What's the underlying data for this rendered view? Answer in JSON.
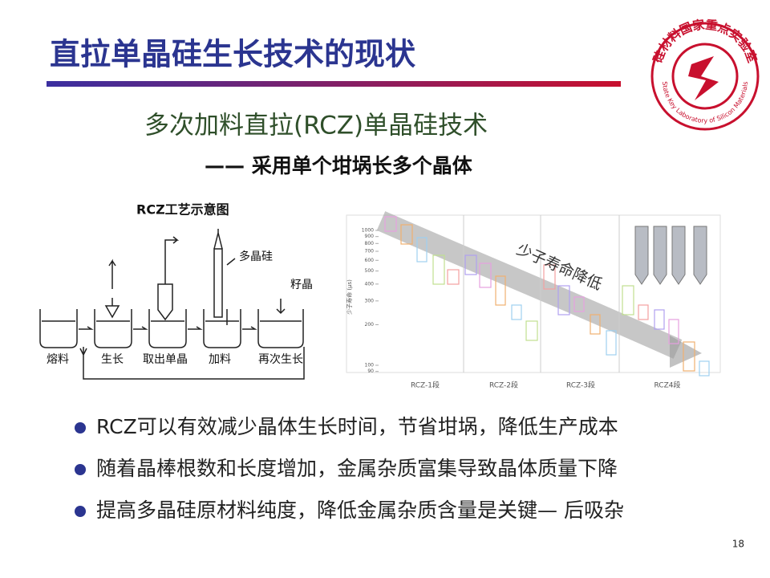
{
  "header": {
    "title": "直拉单晶硅生长技术的现状",
    "logo_text": "硅材料国家重点实验室",
    "logo_english": "State Key Laboratory of Silicon Materials"
  },
  "subtitle": {
    "line1": "多次加料直拉(RCZ)单晶硅技术",
    "line2": "—— 采用单个坩埚长多个晶体"
  },
  "diagram": {
    "title": "RCZ工艺示意图",
    "labels": {
      "polysilicon": "多晶硅",
      "seed": "籽晶"
    },
    "steps": [
      "熔料",
      "生长",
      "取出单晶",
      "加料",
      "再次生长"
    ]
  },
  "figure": {
    "y_label": "少子寿命 (μs)",
    "annotation": "少子寿命降低",
    "categories": [
      "RCZ-1段",
      "RCZ-2段",
      "RCZ-3段",
      "RCZ4段"
    ],
    "yticks": [
      1000,
      900,
      800,
      700,
      600,
      500,
      400,
      300,
      200,
      100,
      90
    ]
  },
  "bullets": [
    "RCZ可以有效减少晶体生长时间，节省坩埚，降低生产成本",
    "随着晶棒根数和长度增加，金属杂质富集导致晶体质量下降",
    "提高多晶硅原材料纯度，降低金属杂质含量是关键— 后吸杂"
  ],
  "page_number": "18"
}
